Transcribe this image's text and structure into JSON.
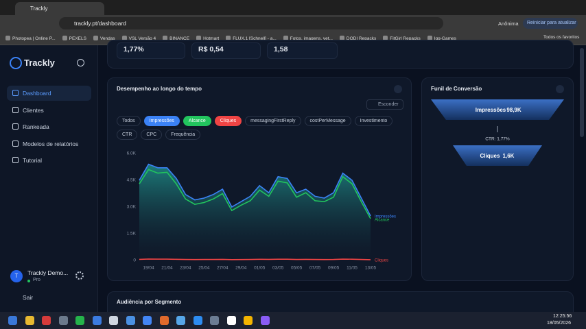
{
  "browser": {
    "tab_title": "Trackly",
    "url": "trackly.pt/dashboard",
    "profile": "Anônima",
    "update": "Reiniciar para atualizar",
    "bookmarks": [
      "Photopea | Online P...",
      "PEXELS",
      "Vendas",
      "VSL Versão 4",
      "BINANCE",
      "Hotmart",
      "FLUX.1 [Schnell] - a...",
      "Fotos, imagens, vet...",
      "DODI Repacks",
      "FitGirl Repacks",
      "Igg-Games"
    ],
    "all_bookmarks": "Todos os favoritos"
  },
  "sidebar": {
    "brand": "Trackly",
    "nav": [
      "Dashboard",
      "Clientes",
      "Rankeada",
      "Modelos de relatórios",
      "Tutorial"
    ],
    "user": {
      "initial": "T",
      "name": "Trackly Demo...",
      "plan": "Pro"
    },
    "logout": "Sair"
  },
  "stats": [
    "1,77%",
    "R$ 0,54",
    "1,58"
  ],
  "panel": {
    "title": "Desempenho ao longo do tempo",
    "hide": "Esconder",
    "chips": [
      "Todos",
      "Impressões",
      "Alcance",
      "Cliques",
      "messagingFirstReply",
      "costPerMessage",
      "Investimento",
      "CTR",
      "CPC",
      "Frequência"
    ]
  },
  "chart_data": {
    "type": "area",
    "x": [
      null,
      "19/04",
      null,
      "21/04",
      null,
      "23/04",
      null,
      "25/04",
      null,
      "27/04",
      null,
      "29/04",
      null,
      "01/05",
      null,
      "03/05",
      null,
      "05/05",
      null,
      "07/05",
      null,
      "09/05",
      null,
      "11/05",
      null,
      "13/05"
    ],
    "series": [
      {
        "name": "Impressões",
        "color": "#3b82f6",
        "values": [
          4500,
          5400,
          5200,
          5200,
          4600,
          3700,
          3400,
          3500,
          3700,
          4000,
          3000,
          3300,
          3600,
          4200,
          3800,
          4700,
          4600,
          3800,
          4000,
          3600,
          3500,
          3800,
          4900,
          4500,
          3500,
          2500
        ]
      },
      {
        "name": "Alcance",
        "color": "#22c55e",
        "values": [
          4300,
          5100,
          4900,
          4950,
          4300,
          3450,
          3150,
          3250,
          3450,
          3750,
          2800,
          3100,
          3350,
          3950,
          3600,
          4450,
          4350,
          3550,
          3800,
          3350,
          3300,
          3550,
          4700,
          4300,
          3300,
          2350
        ]
      },
      {
        "name": "Cliques",
        "color": "#ef4444",
        "values": [
          60,
          80,
          75,
          75,
          65,
          55,
          50,
          55,
          55,
          60,
          45,
          50,
          55,
          65,
          60,
          70,
          70,
          55,
          60,
          55,
          50,
          55,
          75,
          70,
          55,
          40
        ]
      }
    ],
    "ylim": [
      0,
      6000
    ],
    "yticks": [
      0,
      {
        "value": 1500,
        "label": "1.5K"
      },
      {
        "value": 3000,
        "label": "3.0K"
      },
      {
        "value": 4500,
        "label": "4.5K"
      },
      {
        "value": 6000,
        "label": "6.0K"
      }
    ],
    "grid": false
  },
  "funnel": {
    "title": "Funil de Conversão",
    "steps": [
      {
        "label": "Impressões",
        "value": "98,9K"
      },
      {
        "label": "Cliques",
        "value": "1,6K"
      }
    ],
    "rate": "CTR: 1,77%"
  },
  "segment": {
    "title": "Audiência por Segmento"
  },
  "taskbar": {
    "time": "12:25:56",
    "date": "18/05/2026"
  }
}
